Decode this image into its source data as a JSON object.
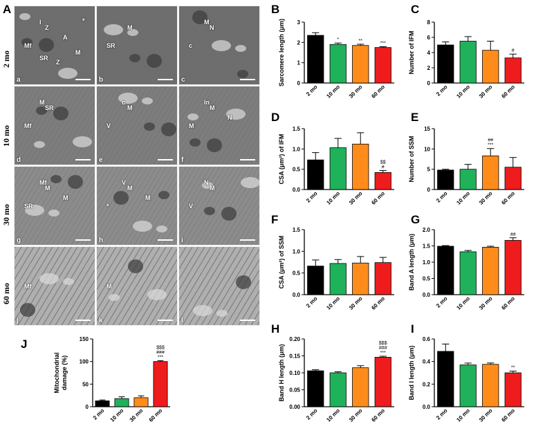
{
  "panel_letters": {
    "A": "A",
    "B": "B",
    "C": "C",
    "D": "D",
    "E": "E",
    "F": "F",
    "G": "G",
    "H": "H",
    "I": "I",
    "J": "J"
  },
  "em_rows": [
    "2 mo",
    "10 mo",
    "30 mo",
    "60 mo"
  ],
  "em_tiles": [
    {
      "letter": "a",
      "labels": [
        "Mf",
        "Z",
        "I",
        "A",
        "M",
        "SR",
        "Z",
        "*"
      ]
    },
    {
      "letter": "b",
      "labels": [
        "SR",
        "M"
      ]
    },
    {
      "letter": "c",
      "labels": [
        "c",
        "N",
        "M"
      ]
    },
    {
      "letter": "d",
      "labels": [
        "Mf",
        "SR",
        "M"
      ]
    },
    {
      "letter": "e",
      "labels": [
        "V",
        "M",
        "c"
      ]
    },
    {
      "letter": "f",
      "labels": [
        "M",
        "M",
        "In",
        "N"
      ]
    },
    {
      "letter": "g",
      "labels": [
        "SR",
        "M",
        "Mf",
        "M"
      ]
    },
    {
      "letter": "h",
      "labels": [
        "*",
        "M",
        "V",
        "M"
      ]
    },
    {
      "letter": "i",
      "labels": [
        "V",
        "M",
        "N"
      ]
    },
    {
      "letter": "j",
      "labels": [
        "Mf"
      ]
    },
    {
      "letter": "k",
      "labels": [
        "M"
      ]
    },
    {
      "letter": "l",
      "labels": []
    }
  ],
  "colors": {
    "2 mo": "#000000",
    "10 mo": "#1fb25a",
    "30 mo": "#ff8c1a",
    "60 mo": "#ee1c1c"
  },
  "chart_data": [
    {
      "id": "B",
      "type": "bar",
      "categories": [
        "2 mo",
        "10 mo",
        "30 mo",
        "60 mo"
      ],
      "values": [
        2.35,
        1.9,
        1.85,
        1.75
      ],
      "errors": [
        0.13,
        0.07,
        0.06,
        0.04
      ],
      "ylabel": "Sarcomere length (μm)",
      "ylim": [
        0,
        3
      ],
      "yticks": [
        "0",
        "1",
        "2",
        "3"
      ],
      "annotations": [
        "",
        "*",
        "**",
        "***"
      ]
    },
    {
      "id": "C",
      "type": "bar",
      "categories": [
        "2 mo",
        "10 mo",
        "30 mo",
        "60 mo"
      ],
      "values": [
        5.0,
        5.5,
        4.3,
        3.3
      ],
      "errors": [
        0.4,
        0.6,
        1.2,
        0.5
      ],
      "ylabel": "Number of IFM",
      "ylim": [
        0,
        8
      ],
      "yticks": [
        "0",
        "2",
        "4",
        "6",
        "8"
      ],
      "annotations": [
        "",
        "",
        "",
        "#"
      ]
    },
    {
      "id": "D",
      "type": "bar",
      "categories": [
        "2 mo",
        "10 mo",
        "30 mo",
        "60 mo"
      ],
      "values": [
        0.73,
        1.03,
        1.12,
        0.42
      ],
      "errors": [
        0.18,
        0.23,
        0.28,
        0.05
      ],
      "ylabel": "CSA (μm²) of IFM",
      "ylim": [
        0,
        1.5
      ],
      "yticks": [
        "0.0",
        "0.5",
        "1.0",
        "1.5"
      ],
      "annotations": [
        "",
        "",
        "",
        "$$\n#"
      ]
    },
    {
      "id": "E",
      "type": "bar",
      "categories": [
        "2 mo",
        "10 mo",
        "30 mo",
        "60 mo"
      ],
      "values": [
        4.8,
        5.0,
        8.3,
        5.5
      ],
      "errors": [
        0.2,
        1.2,
        1.8,
        2.4
      ],
      "ylabel": "Number of SSM",
      "ylim": [
        0,
        15
      ],
      "yticks": [
        "0",
        "5",
        "10",
        "15"
      ],
      "annotations": [
        "",
        "",
        "##\n***",
        ""
      ]
    },
    {
      "id": "F",
      "type": "bar",
      "categories": [
        "2 mo",
        "10 mo",
        "30 mo",
        "60 mo"
      ],
      "values": [
        0.66,
        0.72,
        0.73,
        0.74
      ],
      "errors": [
        0.14,
        0.09,
        0.15,
        0.12
      ],
      "ylabel": "CSA (μm²) of SSM",
      "ylim": [
        0,
        1.5
      ],
      "yticks": [
        "0.0",
        "0.5",
        "1.0",
        "1.5"
      ],
      "annotations": [
        "",
        "",
        "",
        ""
      ]
    },
    {
      "id": "G",
      "type": "bar",
      "categories": [
        "2 mo",
        "10 mo",
        "30 mo",
        "60 mo"
      ],
      "values": [
        1.49,
        1.32,
        1.46,
        1.67
      ],
      "errors": [
        0.02,
        0.04,
        0.03,
        0.08
      ],
      "ylabel": "Band A length (μm)",
      "ylim": [
        0,
        2
      ],
      "yticks": [
        "0.0",
        "0.5",
        "1.0",
        "1.5",
        "2.0"
      ],
      "annotations": [
        "",
        "",
        "",
        "##"
      ]
    },
    {
      "id": "H",
      "type": "bar",
      "categories": [
        "2 mo",
        "10 mo",
        "30 mo",
        "60 mo"
      ],
      "values": [
        0.106,
        0.1,
        0.115,
        0.146
      ],
      "errors": [
        0.003,
        0.003,
        0.006,
        0.003
      ],
      "ylabel": "Band H length (μm)",
      "ylim": [
        0,
        0.2
      ],
      "yticks": [
        "0.00",
        "0.05",
        "0.10",
        "0.15",
        "0.20"
      ],
      "annotations": [
        "",
        "",
        "",
        "$$$\n###\n***"
      ]
    },
    {
      "id": "I",
      "type": "bar",
      "categories": [
        "2 mo",
        "10 mo",
        "30 mo",
        "60 mo"
      ],
      "values": [
        0.49,
        0.37,
        0.375,
        0.3
      ],
      "errors": [
        0.065,
        0.016,
        0.012,
        0.015
      ],
      "ylabel": "Band I length (μm)",
      "ylim": [
        0,
        0.6
      ],
      "yticks": [
        "0.0",
        "0.2",
        "0.4",
        "0.6"
      ],
      "annotations": [
        "",
        "",
        "",
        "**"
      ]
    },
    {
      "id": "J",
      "type": "bar",
      "categories": [
        "2 mo",
        "10 mo",
        "30 mo",
        "60 mo"
      ],
      "values": [
        13,
        18,
        20,
        100
      ],
      "errors": [
        2,
        4,
        4,
        2
      ],
      "ylabel": "Mitochondrial\ndamage (%)",
      "ylim": [
        0,
        150
      ],
      "yticks": [
        "0",
        "50",
        "100",
        "150"
      ],
      "annotations": [
        "",
        "",
        "",
        "$$$\n###\n***"
      ]
    }
  ]
}
